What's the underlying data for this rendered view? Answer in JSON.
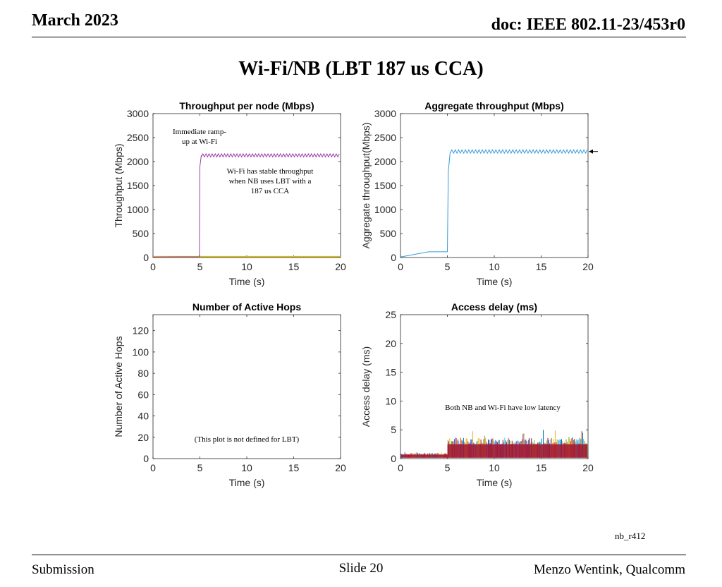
{
  "header": {
    "date": "March 2023",
    "doc": "doc: IEEE 802.11-23/453r0"
  },
  "slide_title": "Wi-Fi/NB (LBT 187 us CCA)",
  "footer": {
    "left": "Submission",
    "center": "Slide 20",
    "right": "Menzo Wentink, Qualcomm"
  },
  "figure_tag": "nb_r412",
  "colors": {
    "wifi_node": "#9b3fa8",
    "aggregate": "#3a9ad9",
    "delay_main": "#a2142f"
  },
  "chart_data": [
    {
      "type": "line",
      "title": "Throughput per node (Mbps)",
      "xlabel": "Time (s)",
      "ylabel": "Throughput (Mbps)",
      "xlim": [
        0,
        20
      ],
      "ylim": [
        0,
        3000
      ],
      "xticks": [
        0,
        5,
        10,
        15,
        20
      ],
      "yticks": [
        0,
        500,
        1000,
        1500,
        2000,
        2500,
        3000
      ],
      "grid": false,
      "series": [
        {
          "x": [
            0,
            4.95,
            5.0,
            5.15,
            20
          ],
          "y": [
            10,
            15,
            1900,
            2130,
            2130
          ]
        },
        {
          "x": [
            0,
            20
          ],
          "y": [
            8,
            8
          ]
        }
      ],
      "annotations": [
        {
          "text": "Immediate ramp-up at Wi-Fi",
          "lines": [
            "Immediate ramp-",
            "up at Wi-Fi"
          ]
        },
        {
          "text": "Wi-Fi has stable throughput when NB uses LBT with a 187 us CCA",
          "lines": [
            "Wi-Fi has stable throughput",
            "when NB uses LBT with a",
            "187 us CCA"
          ]
        }
      ]
    },
    {
      "type": "line",
      "title": "Aggregate throughput (Mbps)",
      "xlabel": "Time (s)",
      "ylabel": "Aggregate throughput(Mbps)",
      "xlim": [
        0,
        20
      ],
      "ylim": [
        0,
        3000
      ],
      "xticks": [
        0,
        5,
        10,
        15,
        20
      ],
      "yticks": [
        0,
        500,
        1000,
        1500,
        2000,
        2500,
        3000
      ],
      "grid": false,
      "series": [
        {
          "x": [
            0,
            3,
            5,
            5.1,
            5.3,
            20
          ],
          "y": [
            10,
            120,
            120,
            1800,
            2200,
            2210
          ]
        }
      ],
      "annotations": []
    },
    {
      "type": "line",
      "title": "Number of Active Hops",
      "xlabel": "Time (s)",
      "ylabel": "Number of Active Hops",
      "xlim": [
        0,
        20
      ],
      "ylim": [
        0,
        135
      ],
      "xticks": [
        0,
        5,
        10,
        15,
        20
      ],
      "yticks": [
        0,
        20,
        40,
        60,
        80,
        100,
        120
      ],
      "grid": false,
      "series": [],
      "annotations": [
        {
          "text": "(This plot is not defined for LBT)",
          "lines": [
            "(This plot is not defined for LBT)"
          ]
        }
      ]
    },
    {
      "type": "bar",
      "title": "Access delay (ms)",
      "xlabel": "Time (s)",
      "ylabel": "Access delay (ms)",
      "xlim": [
        0,
        20
      ],
      "ylim": [
        0,
        25
      ],
      "xticks": [
        0,
        5,
        10,
        15,
        20
      ],
      "yticks": [
        0,
        5,
        10,
        15,
        20,
        25
      ],
      "grid": false,
      "series": [
        {
          "x": [
            0,
            5,
            5,
            20
          ],
          "y": [
            0.7,
            0.7,
            2.5,
            2.5
          ]
        },
        {
          "x": [
            0,
            5,
            5,
            20
          ],
          "y": [
            1.3,
            1.3,
            5.0,
            5.0
          ]
        }
      ],
      "annotations": [
        {
          "text": "Both NB and Wi-Fi have low latency",
          "lines": [
            "Both NB and Wi-Fi have low latency"
          ]
        }
      ]
    }
  ]
}
